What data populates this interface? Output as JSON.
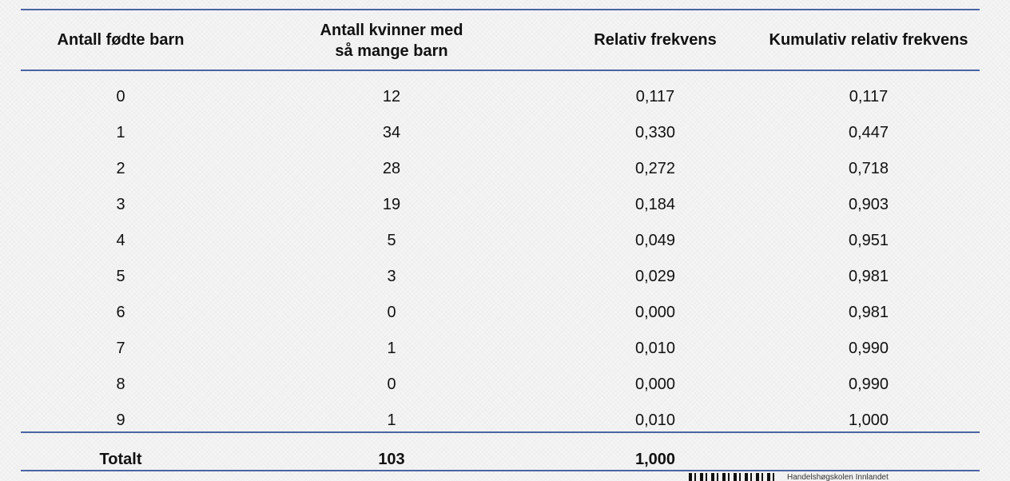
{
  "table": {
    "headers": [
      [
        "Antall fødte barn"
      ],
      [
        "Antall kvinner med",
        "så mange barn"
      ],
      [
        "Relativ frekvens"
      ],
      [
        "Kumulativ relativ frekvens"
      ]
    ],
    "rows": [
      [
        "0",
        "12",
        "0,117",
        "0,117"
      ],
      [
        "1",
        "34",
        "0,330",
        "0,447"
      ],
      [
        "2",
        "28",
        "0,272",
        "0,718"
      ],
      [
        "3",
        "19",
        "0,184",
        "0,903"
      ],
      [
        "4",
        "5",
        "0,049",
        "0,951"
      ],
      [
        "5",
        "3",
        "0,029",
        "0,981"
      ],
      [
        "6",
        "0",
        "0,000",
        "0,981"
      ],
      [
        "7",
        "1",
        "0,010",
        "0,990"
      ],
      [
        "8",
        "0",
        "0,000",
        "0,990"
      ],
      [
        "9",
        "1",
        "0,010",
        "1,000"
      ]
    ],
    "total": [
      "Totalt",
      "103",
      "1,000"
    ]
  },
  "footer": {
    "logo_text": "Handelshøgskolen Innlandet"
  }
}
